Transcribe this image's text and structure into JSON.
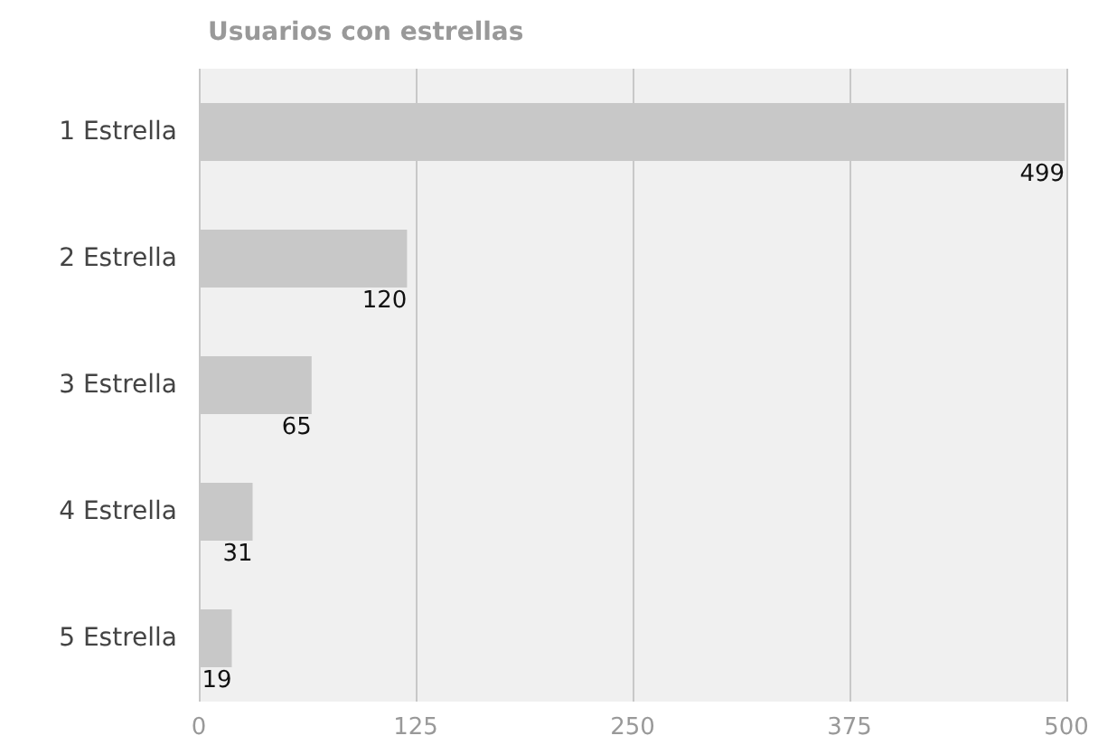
{
  "chart_data": {
    "type": "bar",
    "title": "Usuarios con estrellas",
    "orientation": "horizontal",
    "categories": [
      "1 Estrella",
      "2 Estrella",
      "3 Estrella",
      "4 Estrella",
      "5 Estrella"
    ],
    "values": [
      499,
      120,
      65,
      31,
      19
    ],
    "color": "#c8c8c8",
    "xlim": [
      0,
      500
    ],
    "xticks": [
      0,
      125,
      250,
      375,
      500
    ],
    "grid": "x",
    "data_labels": true
  }
}
